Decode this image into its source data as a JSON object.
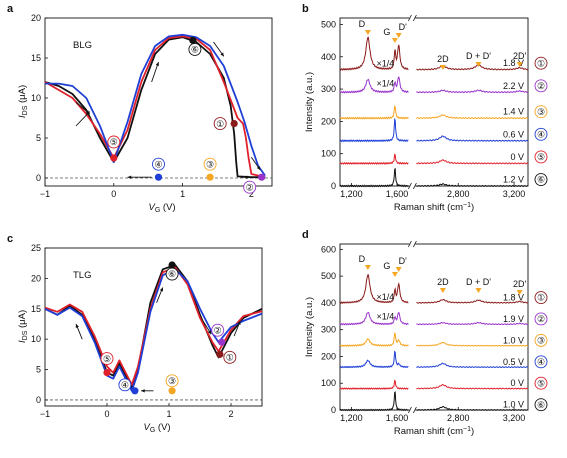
{
  "panels": {
    "a": {
      "letter": "a",
      "sample": "BLG",
      "xlabel": "V_G (V)",
      "ylabel": "I_DS (μA)",
      "xticks": [
        "−1",
        "0",
        "1",
        "2"
      ],
      "yticks": [
        "0",
        "5",
        "10",
        "15",
        "20"
      ],
      "markers": [
        "①",
        "②",
        "③",
        "④",
        "⑤",
        "⑥"
      ]
    },
    "b": {
      "letter": "b",
      "xlabel": "Raman shift (cm−1)",
      "ylabel": "Intensity (a.u.)",
      "xticks": [
        "1,200",
        "1,600",
        "2,800",
        "3,200"
      ],
      "yticks": [
        "0",
        "100",
        "200",
        "300",
        "400",
        "500"
      ],
      "peaks": [
        "D",
        "G",
        "D'",
        "2D",
        "D + D'",
        "2D'"
      ],
      "scale_notes": [
        "×1/4",
        "×1/4"
      ],
      "voltages": [
        "1.8 V",
        "2.2 V",
        "1.4 V",
        "0.6 V",
        "0 V",
        "1.2 V"
      ],
      "states": [
        "①",
        "②",
        "③",
        "④",
        "⑤",
        "⑥"
      ]
    },
    "c": {
      "letter": "c",
      "sample": "TLG",
      "xlabel": "V_G (V)",
      "ylabel": "I_DS (μA)",
      "xticks": [
        "−1",
        "0",
        "1",
        "2"
      ],
      "yticks": [
        "0",
        "5",
        "10",
        "15",
        "20",
        "25"
      ],
      "markers": [
        "①",
        "②",
        "③",
        "④",
        "⑤",
        "⑥"
      ]
    },
    "d": {
      "letter": "d",
      "xlabel": "Raman shift (cm−1)",
      "ylabel": "Intensity (a.u.)",
      "xticks": [
        "1,200",
        "1,600",
        "2,800",
        "3,200"
      ],
      "yticks": [
        "0",
        "100",
        "200",
        "300",
        "400",
        "500",
        "600"
      ],
      "peaks": [
        "D",
        "G",
        "D'",
        "2D",
        "D + D'",
        "2D'"
      ],
      "scale_notes": [
        "×1/4",
        "×1/4"
      ],
      "voltages": [
        "1.8 V",
        "1.9 V",
        "1.0 V",
        "0.5 V",
        "0 V",
        "1.0 V"
      ],
      "states": [
        "①",
        "②",
        "③",
        "④",
        "⑤",
        "⑥"
      ]
    }
  },
  "colors": {
    "s1": "#8b1a1a",
    "s2": "#9933cc",
    "s3": "#f5a623",
    "s4": "#1f3fd6",
    "s5": "#e0202a",
    "s6": "#111111",
    "loop_black": "#111111",
    "loop_red": "#e0202a",
    "loop_blue": "#1f3fd6"
  },
  "chart_data": [
    {
      "panel": "a",
      "type": "line",
      "xlim": [
        -1,
        2.3
      ],
      "ylim": [
        -1,
        20
      ],
      "series": [
        {
          "color": "loop_black",
          "x": [
            -1,
            -0.8,
            -0.6,
            -0.4,
            -0.2,
            0,
            0.2,
            0.4,
            0.6,
            0.8,
            1.0,
            1.2,
            1.4,
            1.6,
            1.7,
            1.75,
            1.78,
            1.8,
            2.0,
            2.2
          ],
          "y": [
            12.0,
            11.5,
            10.5,
            8.5,
            5.0,
            2.0,
            5.0,
            11.0,
            15.5,
            17.3,
            17.6,
            17.0,
            15.5,
            12.5,
            9.0,
            5.5,
            2.0,
            0.2,
            0.1,
            0.1
          ]
        },
        {
          "color": "loop_red",
          "x": [
            -1,
            -0.8,
            -0.6,
            -0.4,
            -0.2,
            0,
            0.2,
            0.4,
            0.6,
            0.8,
            1.0,
            1.2,
            1.4,
            1.6,
            1.8,
            1.88,
            1.92,
            1.96,
            2.0,
            2.2
          ],
          "y": [
            12.0,
            11.0,
            10.0,
            8.0,
            5.5,
            2.5,
            6.0,
            12.0,
            16.0,
            17.5,
            17.7,
            17.4,
            16.0,
            12.0,
            7.5,
            6.8,
            5.0,
            2.5,
            0.5,
            0.1
          ]
        },
        {
          "color": "loop_blue",
          "x": [
            -1,
            -0.8,
            -0.6,
            -0.4,
            -0.2,
            0,
            0.2,
            0.4,
            0.6,
            0.8,
            1.0,
            1.2,
            1.4,
            1.6,
            1.8,
            1.9,
            2.0,
            2.1,
            2.2
          ],
          "y": [
            11.8,
            11.8,
            11.5,
            10.0,
            6.5,
            2.0,
            7.0,
            13.0,
            16.5,
            17.7,
            17.9,
            17.6,
            16.5,
            14.0,
            9.5,
            7.0,
            4.0,
            1.5,
            0.3
          ]
        }
      ]
    },
    {
      "panel": "c",
      "type": "line",
      "xlim": [
        -1,
        2.5
      ],
      "ylim": [
        -1,
        25
      ],
      "series": [
        {
          "color": "loop_black",
          "x": [
            -1,
            -0.8,
            -0.6,
            -0.4,
            -0.2,
            0,
            0.1,
            0.2,
            0.3,
            0.4,
            0.5,
            0.7,
            0.9,
            1.1,
            1.3,
            1.5,
            1.7,
            1.8,
            2.0,
            2.2,
            2.5
          ],
          "y": [
            15.0,
            14.0,
            15.5,
            14.0,
            10.0,
            4.5,
            4.0,
            6.0,
            4.0,
            2.0,
            5.0,
            16.0,
            21.5,
            22.2,
            19.5,
            14.0,
            9.0,
            7.0,
            11.0,
            13.5,
            15.0
          ]
        },
        {
          "color": "loop_red",
          "x": [
            -1,
            -0.8,
            -0.6,
            -0.4,
            -0.2,
            0,
            0.1,
            0.2,
            0.3,
            0.4,
            0.5,
            0.7,
            0.9,
            1.1,
            1.3,
            1.5,
            1.7,
            1.8,
            2.0,
            2.2,
            2.5
          ],
          "y": [
            15.2,
            14.5,
            15.7,
            14.5,
            10.5,
            5.5,
            4.5,
            6.5,
            4.5,
            2.5,
            5.5,
            15.0,
            21.0,
            21.8,
            19.0,
            13.5,
            9.5,
            8.0,
            11.5,
            13.8,
            14.6
          ]
        },
        {
          "color": "loop_blue",
          "x": [
            -1,
            -0.8,
            -0.6,
            -0.4,
            -0.2,
            0,
            0.1,
            0.2,
            0.3,
            0.4,
            0.5,
            0.7,
            0.9,
            1.1,
            1.3,
            1.5,
            1.7,
            1.8,
            2.0,
            2.2,
            2.5
          ],
          "y": [
            15.0,
            14.0,
            15.2,
            13.8,
            9.5,
            4.0,
            3.5,
            5.5,
            3.5,
            1.5,
            4.5,
            14.5,
            20.5,
            21.5,
            19.5,
            15.0,
            11.0,
            9.5,
            12.0,
            13.0,
            14.2
          ]
        }
      ]
    },
    {
      "panel": "b",
      "type": "line",
      "ylim": [
        0,
        520
      ],
      "series": [
        {
          "name": "1.2 V",
          "color": "s6",
          "offset": 0,
          "d": 0,
          "g": 55,
          "dp": 0,
          "p2d": 6,
          "ddp": 0,
          "p2dp": 0
        },
        {
          "name": "0 V",
          "color": "s5",
          "offset": 70,
          "d": 0,
          "g": 28,
          "dp": 0,
          "p2d": 10,
          "ddp": 0,
          "p2dp": 0
        },
        {
          "name": "0.6 V",
          "color": "s4",
          "offset": 140,
          "d": 0,
          "g": 70,
          "dp": 0,
          "p2d": 14,
          "ddp": 0,
          "p2dp": 0
        },
        {
          "name": "1.4 V",
          "color": "s3",
          "offset": 210,
          "d": 0,
          "g": 40,
          "dp": 0,
          "p2d": 10,
          "ddp": 0,
          "p2dp": 0
        },
        {
          "name": "2.2 V",
          "color": "s2",
          "offset": 290,
          "d": 40,
          "g": 28,
          "dp": 48,
          "p2d": 6,
          "ddp": 6,
          "p2dp": 4
        },
        {
          "name": "1.8 V",
          "color": "s1",
          "offset": 360,
          "d": 100,
          "g": 55,
          "dp": 75,
          "p2d": 12,
          "ddp": 14,
          "p2dp": 6
        }
      ]
    },
    {
      "panel": "d",
      "type": "line",
      "ylim": [
        0,
        620
      ],
      "series": [
        {
          "name": "1.0 V",
          "color": "s6",
          "offset": 0,
          "d": 0,
          "g": 70,
          "dp": 0,
          "p2d": 12,
          "ddp": 0,
          "p2dp": 0
        },
        {
          "name": "0 V",
          "color": "s5",
          "offset": 80,
          "d": 0,
          "g": 30,
          "dp": 0,
          "p2d": 14,
          "ddp": 0,
          "p2dp": 0
        },
        {
          "name": "0.5 V",
          "color": "s4",
          "offset": 160,
          "d": 25,
          "g": 60,
          "dp": 10,
          "p2d": 14,
          "ddp": 0,
          "p2dp": 0
        },
        {
          "name": "1.0 V",
          "color": "s3",
          "offset": 240,
          "d": 25,
          "g": 48,
          "dp": 20,
          "p2d": 12,
          "ddp": 0,
          "p2dp": 0
        },
        {
          "name": "1.9 V",
          "color": "s2",
          "offset": 320,
          "d": 45,
          "g": 25,
          "dp": 45,
          "p2d": 6,
          "ddp": 6,
          "p2dp": 3
        },
        {
          "name": "1.8 V",
          "color": "s1",
          "offset": 400,
          "d": 105,
          "g": 45,
          "dp": 70,
          "p2d": 12,
          "ddp": 10,
          "p2dp": 5
        }
      ]
    }
  ]
}
